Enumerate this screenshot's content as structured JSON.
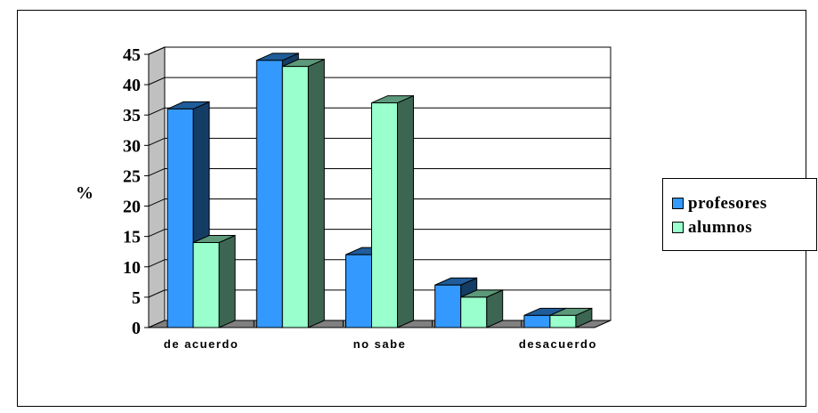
{
  "chart_data": {
    "type": "bar",
    "ylabel": "%",
    "ylim": [
      0,
      45
    ],
    "yticks": [
      "0",
      "5",
      "10",
      "15",
      "20",
      "25",
      "30",
      "35",
      "40",
      "45"
    ],
    "categories": [
      "de acuerdo",
      "",
      "no sabe",
      "",
      "desacuerdo"
    ],
    "category_labels_shown": [
      "de acuerdo",
      "no sabe",
      "desacuerdo"
    ],
    "grid": true,
    "legend_position": "right",
    "series": [
      {
        "name": "profesores",
        "color": "#3399ff",
        "values": [
          36,
          44,
          12,
          7,
          2
        ]
      },
      {
        "name": "alumnos",
        "color": "#99ffcc",
        "values": [
          14,
          43,
          37,
          5,
          2
        ]
      }
    ]
  }
}
